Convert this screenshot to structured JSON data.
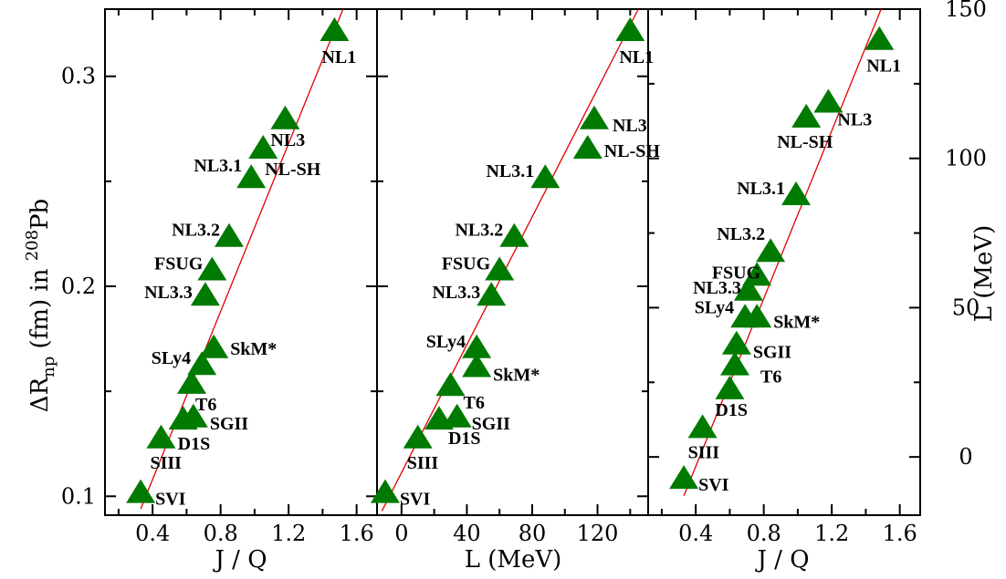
{
  "chart_data": [
    {
      "type": "scatter",
      "id": "panel1",
      "xlabel": "J / Q",
      "ylabel_parts": {
        "delta": "ΔR",
        "sub": "np",
        "mid": " (fm)  in  ",
        "sup": "208",
        "end": "Pb"
      },
      "xlim": [
        0.12,
        1.72
      ],
      "ylim": [
        0.091,
        0.332
      ],
      "xticks": [
        0.4,
        0.8,
        1.2,
        1.6
      ],
      "xtick_labels": [
        "0.4",
        "0.8",
        "1.2",
        "1.6"
      ],
      "yticks": [
        0.1,
        0.2,
        0.3
      ],
      "ytick_labels": [
        "0.1",
        "0.2",
        "0.3"
      ],
      "fit_line": [
        [
          0.33,
          0.094
        ],
        [
          1.52,
          0.332
        ]
      ],
      "points": [
        {
          "label": "NL1",
          "x": 1.47,
          "y": 0.322
        },
        {
          "label": "NL3",
          "x": 1.18,
          "y": 0.28
        },
        {
          "label": "NL-SH",
          "x": 1.05,
          "y": 0.266
        },
        {
          "label": "NL3.1",
          "x": 0.98,
          "y": 0.252
        },
        {
          "label": "NL3.2",
          "x": 0.85,
          "y": 0.224
        },
        {
          "label": "FSUG",
          "x": 0.75,
          "y": 0.208
        },
        {
          "label": "NL3.3",
          "x": 0.71,
          "y": 0.196
        },
        {
          "label": "SkM*",
          "x": 0.76,
          "y": 0.171
        },
        {
          "label": "SLy4",
          "x": 0.69,
          "y": 0.163
        },
        {
          "label": "T6",
          "x": 0.63,
          "y": 0.154
        },
        {
          "label": "SGII",
          "x": 0.64,
          "y": 0.138
        },
        {
          "label": "D1S",
          "x": 0.58,
          "y": 0.137
        },
        {
          "label": "SIII",
          "x": 0.45,
          "y": 0.128
        },
        {
          "label": "SVI",
          "x": 0.33,
          "y": 0.102
        }
      ]
    },
    {
      "type": "scatter",
      "id": "panel2",
      "xlabel": "L  (MeV)",
      "xlim": [
        -15,
        151
      ],
      "ylim": [
        0.091,
        0.332
      ],
      "xticks": [
        0,
        40,
        80,
        120
      ],
      "xtick_labels": [
        "0",
        "40",
        "80",
        "120"
      ],
      "yticks": [
        0.1,
        0.2,
        0.3
      ],
      "fit_line": [
        [
          -12,
          0.093
        ],
        [
          145,
          0.332
        ]
      ],
      "points": [
        {
          "label": "NL1",
          "x": 140,
          "y": 0.322
        },
        {
          "label": "NL3",
          "x": 118,
          "y": 0.28
        },
        {
          "label": "NL-SH",
          "x": 114,
          "y": 0.266
        },
        {
          "label": "NL3.1",
          "x": 88,
          "y": 0.252
        },
        {
          "label": "NL3.2",
          "x": 69,
          "y": 0.224
        },
        {
          "label": "FSUG",
          "x": 60,
          "y": 0.208
        },
        {
          "label": "NL3.3",
          "x": 55,
          "y": 0.196
        },
        {
          "label": "SLy4",
          "x": 46,
          "y": 0.171
        },
        {
          "label": "SkM*",
          "x": 46,
          "y": 0.162
        },
        {
          "label": "T6",
          "x": 30,
          "y": 0.153
        },
        {
          "label": "SGII",
          "x": 34,
          "y": 0.138
        },
        {
          "label": "D1S",
          "x": 23,
          "y": 0.137
        },
        {
          "label": "SIII",
          "x": 10,
          "y": 0.128
        },
        {
          "label": "SVI",
          "x": -10,
          "y": 0.102
        }
      ]
    },
    {
      "type": "scatter",
      "id": "panel3",
      "xlabel": "J / Q",
      "ylabel": "L  (MeV)",
      "xlim": [
        0.12,
        1.72
      ],
      "ylim": [
        -19.5,
        150
      ],
      "xticks": [
        0.4,
        0.8,
        1.2,
        1.6
      ],
      "xtick_labels": [
        "0.4",
        "0.8",
        "1.2",
        "1.6"
      ],
      "yticks": [
        0,
        50,
        100,
        150
      ],
      "ytick_labels": [
        "0",
        "50",
        "100",
        "150"
      ],
      "fit_line": [
        [
          0.33,
          -13
        ],
        [
          1.49,
          150
        ]
      ],
      "points": [
        {
          "label": "NL1",
          "x": 1.48,
          "y": 140
        },
        {
          "label": "NL3",
          "x": 1.18,
          "y": 119
        },
        {
          "label": "NL-SH",
          "x": 1.05,
          "y": 114
        },
        {
          "label": "NL3.1",
          "x": 0.99,
          "y": 88
        },
        {
          "label": "NL3.2",
          "x": 0.84,
          "y": 69
        },
        {
          "label": "FSUG",
          "x": 0.76,
          "y": 61
        },
        {
          "label": "NL3.3",
          "x": 0.71,
          "y": 56
        },
        {
          "label": "SLy4",
          "x": 0.69,
          "y": 47
        },
        {
          "label": "SkM*",
          "x": 0.76,
          "y": 47
        },
        {
          "label": "SGII",
          "x": 0.64,
          "y": 38
        },
        {
          "label": "T6",
          "x": 0.63,
          "y": 31
        },
        {
          "label": "D1S",
          "x": 0.6,
          "y": 23
        },
        {
          "label": "SIII",
          "x": 0.44,
          "y": 10
        },
        {
          "label": "SVI",
          "x": 0.33,
          "y": -7
        }
      ]
    }
  ]
}
